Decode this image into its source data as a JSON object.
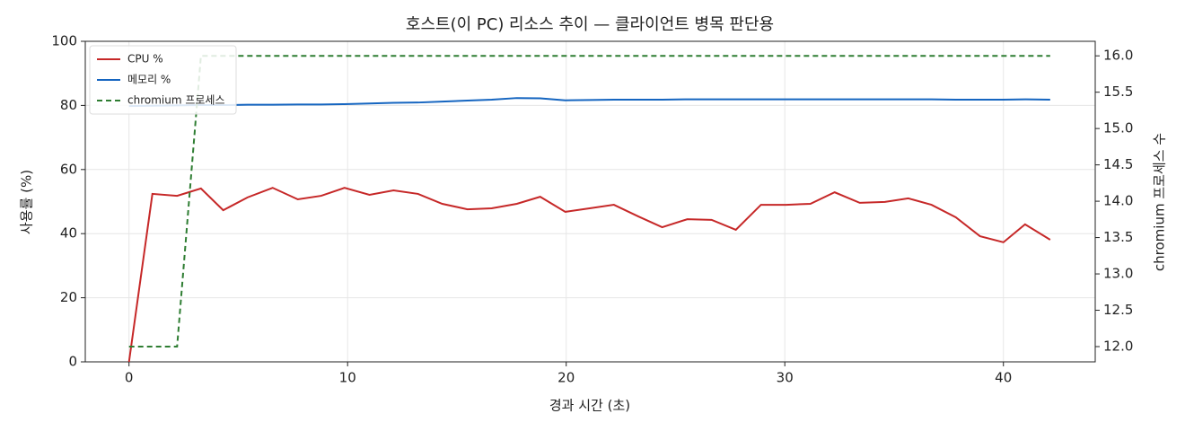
{
  "chart_data": {
    "type": "line",
    "title": "호스트(이 PC) 리소스 추이 — 클라이언트 병목 판단용",
    "x_label": "경과 시간 (초)",
    "y_label": "사용률 (%)",
    "y2_label": "chromium 프로세스 수",
    "x": [
      0,
      1.07,
      2.2,
      3.29,
      4.31,
      5.42,
      6.57,
      7.72,
      8.79,
      9.86,
      11.0,
      12.1,
      13.22,
      14.33,
      15.48,
      16.59,
      17.74,
      18.81,
      19.96,
      21.07,
      22.18,
      23.29,
      24.39,
      25.54,
      26.65,
      27.76,
      28.91,
      30.06,
      31.17,
      32.28,
      33.43,
      34.58,
      35.65,
      36.71,
      37.82,
      38.93,
      40.0,
      40.99,
      42.14
    ],
    "series": [
      {
        "name": "CPU %",
        "color": "#c62828",
        "axis": "y",
        "values": [
          0,
          52.4,
          51.8,
          54.1,
          47.3,
          51.3,
          54.3,
          50.7,
          51.8,
          54.3,
          52.1,
          53.5,
          52.4,
          49.3,
          47.6,
          47.9,
          49.3,
          51.5,
          46.8,
          47.9,
          49.0,
          45.4,
          42.0,
          44.5,
          44.3,
          41.2,
          49.0,
          49.0,
          49.3,
          52.9,
          49.6,
          49.9,
          51.0,
          49.0,
          45.1,
          39.2,
          37.3,
          42.9,
          38.1
        ]
      },
      {
        "name": "메모리 %",
        "color": "#1565c0",
        "axis": "y",
        "values": [
          79.8,
          79.9,
          80.0,
          80.1,
          80.1,
          80.2,
          80.2,
          80.3,
          80.3,
          80.4,
          80.6,
          80.8,
          80.9,
          81.2,
          81.5,
          81.8,
          82.3,
          82.2,
          81.6,
          81.7,
          81.8,
          81.8,
          81.8,
          81.9,
          81.9,
          81.9,
          81.9,
          81.9,
          81.9,
          81.9,
          81.9,
          81.9,
          81.9,
          81.9,
          81.8,
          81.8,
          81.8,
          81.9,
          81.8
        ]
      },
      {
        "name": "chromium 프로세스",
        "color": "#2e7d32",
        "axis": "y2",
        "dashed": true,
        "values": [
          12,
          12,
          12,
          16,
          16,
          16,
          16,
          16,
          16,
          16,
          16,
          16,
          16,
          16,
          16,
          16,
          16,
          16,
          16,
          16,
          16,
          16,
          16,
          16,
          16,
          16,
          16,
          16,
          16,
          16,
          16,
          16,
          16,
          16,
          16,
          16,
          16,
          16,
          16
        ]
      }
    ],
    "xlim": [
      -2.0,
      44.2
    ],
    "xticks": [
      0,
      10,
      20,
      30,
      40
    ],
    "ylim": [
      0,
      100
    ],
    "yticks": [
      0,
      20,
      40,
      60,
      80,
      100
    ],
    "y2lim": [
      11.79,
      16.2
    ],
    "y2ticks": [
      {
        "value": 12,
        "label": "12.0"
      },
      {
        "value": 12.5,
        "label": "12.5"
      },
      {
        "value": 13,
        "label": "13.0"
      },
      {
        "value": 13.5,
        "label": "13.5"
      },
      {
        "value": 14,
        "label": "14.0"
      },
      {
        "value": 14.5,
        "label": "14.5"
      },
      {
        "value": 15,
        "label": "15.0"
      },
      {
        "value": 15.5,
        "label": "15.5"
      },
      {
        "value": 16,
        "label": "16.0"
      }
    ],
    "grid": true,
    "legend": "upper-left"
  }
}
